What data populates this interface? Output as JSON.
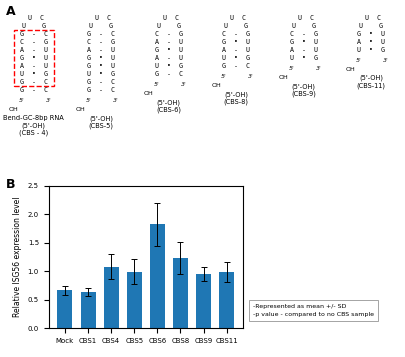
{
  "chart_data": {
    "type": "bar",
    "categories": [
      "Mock",
      "CBS1",
      "CBS4",
      "CBS5",
      "CBS6",
      "CBS8",
      "CBS9",
      "CBS11"
    ],
    "values": [
      0.67,
      0.63,
      1.08,
      0.99,
      1.82,
      1.24,
      0.95,
      0.99
    ],
    "errors": [
      0.08,
      0.07,
      0.22,
      0.22,
      0.38,
      0.28,
      0.12,
      0.18
    ],
    "ylabel": "Relative ISG56 expression level",
    "ylim": [
      0.0,
      2.5
    ],
    "yticks": [
      {
        "value": 0.0,
        "label": "0.0"
      },
      {
        "value": 0.5,
        "label": "0.5"
      },
      {
        "value": 1.0,
        "label": "1.0"
      },
      {
        "value": 1.5,
        "label": "1.5"
      },
      {
        "value": 2.0,
        "label": "2.0"
      },
      {
        "value": 2.5,
        "label": "2.5"
      }
    ],
    "grid": false,
    "panel_labels": [
      "A",
      "B"
    ],
    "notes": [
      "-Represented as mean +/- SD",
      "-p value - compared to no CBS sample"
    ],
    "structure_end_labels": [
      "5'",
      "3'",
      "OH"
    ],
    "structures": [
      {
        "name": "Bend-GC-8bp RNA\n(5'-OH)\n(CBS - 4)",
        "box_rows": [
          3,
          9
        ],
        "color": "red",
        "lines": [
          " U  C",
          "U    G",
          "G  -  C",
          "C  -  G",
          "A  -  U",
          "G  •  U",
          "A  -  U",
          "U  •  G",
          "G  -  C",
          "G  -  C"
        ]
      },
      {
        "name": "(5'-OH)\n(CBS-5)",
        "lines": [
          " U  C",
          "U    G",
          "G  -  C",
          "C  -  G",
          "A  -  U",
          "G  •  U",
          "G  •  U",
          "U  •  G",
          "G  -  C",
          "G  -  C"
        ]
      },
      {
        "name": "(5'-OH)\n(CBS-6)",
        "lines": [
          " U  C",
          "U    G",
          "C  -  G",
          "A  -  U",
          "G  •  U",
          "A  -  U",
          "U  •  G",
          "G  -  C"
        ]
      },
      {
        "name": "(5'-OH)\n(CBS-8)",
        "lines": [
          " U  C",
          "U    G",
          "C  -  G",
          "G  •  U",
          "A  -  U",
          "U  •  G",
          "G  -  C"
        ]
      },
      {
        "name": "(5'-OH)\n(CBS-9)",
        "lines": [
          " U  C",
          "U    G",
          "C  -  G",
          "G  •  U",
          "A  -  U",
          "U  •  G"
        ]
      },
      {
        "name": "(5'-OH)\n(CBS-11)",
        "lines": [
          " U  C",
          "U    G",
          "G  •  U",
          "A  •  U",
          "U  •  G"
        ]
      }
    ]
  }
}
